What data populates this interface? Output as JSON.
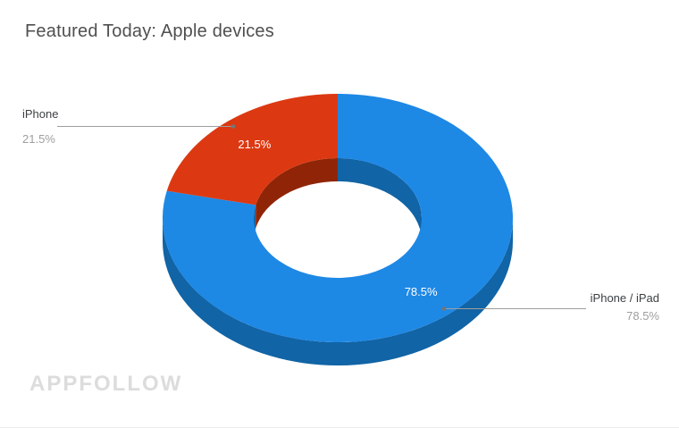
{
  "title": "Featured Today: Apple devices",
  "watermark": "APPFOLLOW",
  "chart_data": {
    "type": "pie",
    "subtype": "3d-donut",
    "title": "Featured Today: Apple devices",
    "labels": [
      "iPhone / iPad",
      "iPhone"
    ],
    "values": [
      78.5,
      21.5
    ],
    "value_labels": [
      "78.5%",
      "21.5%"
    ],
    "colors": [
      "#1e88e5",
      "#dc3912"
    ],
    "dark_colors": [
      "#1164a5",
      "#8f2506"
    ],
    "slice_text_color": "#ffffff",
    "start_angle_deg": 0,
    "direction": "clockwise",
    "donut_hole_ratio": 0.48,
    "labels_position": "outside-callouts",
    "background": "#ffffff"
  }
}
